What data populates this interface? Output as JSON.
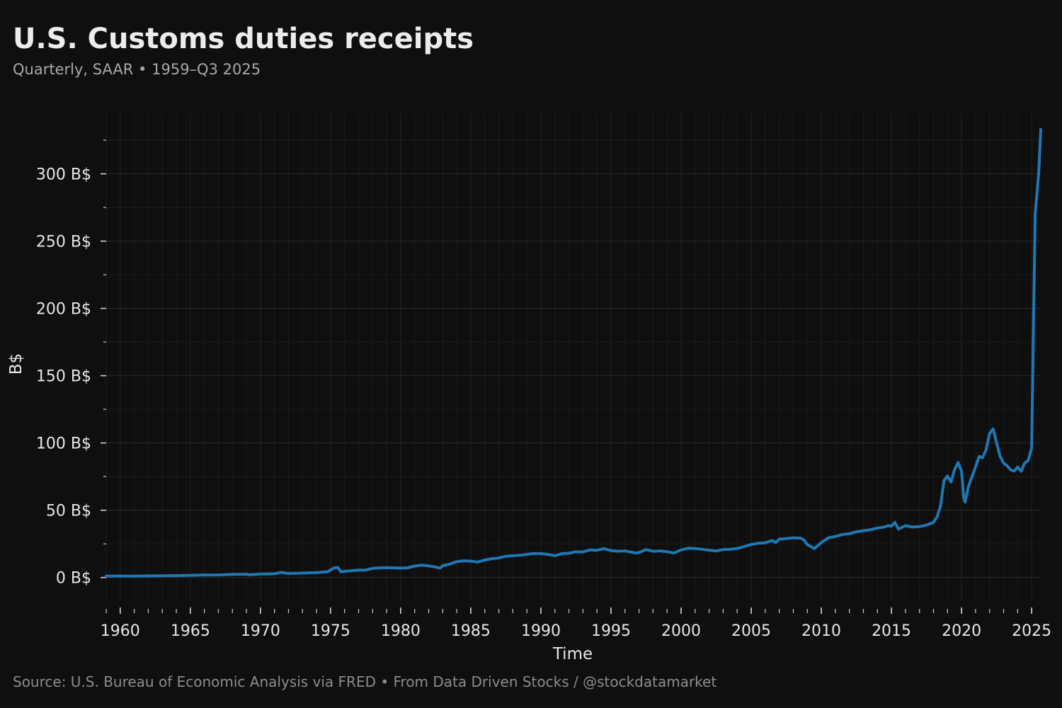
{
  "chart_data": {
    "type": "line",
    "title": "U.S. Customs duties receipts",
    "subtitle": "Quarterly, SAAR • 1959–Q3 2025",
    "xlabel": "Time",
    "ylabel": "B$",
    "source": "Source: U.S. Bureau of Economic Analysis via FRED • From Data Driven Stocks / @stockdatamarket",
    "xlim": [
      1959,
      2025.65
    ],
    "ylim": [
      -17,
      345
    ],
    "x_ticks": [
      1960,
      1965,
      1970,
      1975,
      1980,
      1985,
      1990,
      1995,
      2000,
      2005,
      2010,
      2015,
      2020,
      2025
    ],
    "y_ticks": [
      0,
      50,
      100,
      150,
      200,
      250,
      300
    ],
    "y_tick_labels": [
      "0 B$",
      "50 B$",
      "100 B$",
      "150 B$",
      "200 B$",
      "250 B$",
      "300 B$"
    ],
    "grid": true,
    "colors": {
      "background": "#0f0f0f",
      "line": "#1f77b4",
      "text": "#e6e6e6",
      "grid": "#2a2a2a"
    },
    "series": [
      {
        "name": "Customs duties",
        "x": [
          1959.0,
          1960.0,
          1961.0,
          1962.0,
          1963.0,
          1964.0,
          1965.0,
          1966.0,
          1967.0,
          1968.0,
          1969.0,
          1969.2,
          1970.0,
          1971.0,
          1971.5,
          1972.0,
          1973.0,
          1974.0,
          1974.8,
          1975.25,
          1975.5,
          1975.75,
          1976.0,
          1977.0,
          1977.5,
          1978.0,
          1978.5,
          1979.0,
          1980.0,
          1980.5,
          1981.0,
          1981.5,
          1982.0,
          1982.5,
          1982.8,
          1983.0,
          1983.5,
          1984.0,
          1984.5,
          1985.0,
          1985.5,
          1986.0,
          1986.5,
          1987.0,
          1987.5,
          1988.0,
          1988.5,
          1989.0,
          1989.5,
          1990.0,
          1990.5,
          1991.0,
          1991.5,
          1992.0,
          1992.5,
          1993.0,
          1993.5,
          1994.0,
          1994.5,
          1995.0,
          1995.5,
          1996.0,
          1996.5,
          1996.8,
          1997.0,
          1997.5,
          1998.0,
          1998.5,
          1999.0,
          1999.5,
          2000.0,
          2000.5,
          2001.0,
          2001.5,
          2002.0,
          2002.5,
          2003.0,
          2003.5,
          2004.0,
          2004.5,
          2005.0,
          2005.5,
          2006.0,
          2006.5,
          2006.75,
          2007.0,
          2007.5,
          2008.0,
          2008.5,
          2008.75,
          2009.0,
          2009.5,
          2010.0,
          2010.5,
          2011.0,
          2011.5,
          2012.0,
          2012.5,
          2013.0,
          2013.5,
          2014.0,
          2014.5,
          2014.75,
          2015.0,
          2015.25,
          2015.5,
          2016.0,
          2016.5,
          2017.0,
          2017.5,
          2018.0,
          2018.25,
          2018.5,
          2018.75,
          2019.0,
          2019.25,
          2019.5,
          2019.75,
          2020.0,
          2020.15,
          2020.25,
          2020.5,
          2020.75,
          2021.0,
          2021.25,
          2021.5,
          2021.75,
          2022.0,
          2022.25,
          2022.5,
          2022.75,
          2023.0,
          2023.25,
          2023.5,
          2023.75,
          2024.0,
          2024.25,
          2024.5,
          2024.75,
          2025.0,
          2025.25,
          2025.5,
          2025.65
        ],
        "values": [
          1.1,
          1.1,
          1.0,
          1.2,
          1.3,
          1.4,
          1.6,
          1.9,
          1.9,
          2.3,
          2.4,
          2.0,
          2.6,
          2.8,
          3.8,
          3.0,
          3.3,
          3.6,
          4.3,
          7.2,
          7.5,
          4.2,
          4.6,
          5.5,
          5.5,
          6.8,
          7.2,
          7.3,
          7.0,
          7.2,
          8.5,
          9.2,
          8.6,
          7.8,
          7.0,
          8.8,
          10.0,
          11.8,
          12.4,
          12.2,
          11.5,
          13.0,
          14.0,
          14.5,
          15.8,
          16.2,
          16.5,
          17.2,
          17.8,
          17.8,
          17.2,
          16.2,
          17.8,
          18.0,
          19.2,
          19.0,
          20.5,
          20.2,
          21.5,
          20.0,
          19.5,
          19.8,
          18.8,
          18.2,
          18.5,
          20.8,
          19.5,
          19.8,
          19.2,
          18.2,
          20.5,
          21.8,
          21.5,
          21.0,
          20.3,
          19.8,
          20.8,
          21.0,
          21.5,
          23.0,
          24.5,
          25.5,
          25.8,
          27.5,
          26.0,
          28.5,
          29.0,
          29.5,
          29.3,
          28.0,
          24.5,
          21.5,
          26.0,
          29.5,
          30.5,
          32.0,
          32.5,
          34.0,
          34.8,
          35.5,
          36.8,
          37.5,
          38.5,
          38.2,
          41.0,
          36.0,
          38.5,
          37.5,
          37.8,
          39.0,
          41.0,
          45.0,
          53.0,
          72.0,
          75.5,
          71.0,
          80.0,
          85.5,
          79.0,
          60.0,
          56.0,
          68.0,
          75.0,
          82.0,
          90.0,
          89.0,
          95.0,
          107.0,
          110.5,
          100.0,
          90.0,
          85.0,
          83.0,
          80.0,
          79.0,
          82.0,
          79.0,
          85.0,
          87.0,
          96.0,
          270.0,
          300.0,
          333.0
        ]
      }
    ]
  }
}
